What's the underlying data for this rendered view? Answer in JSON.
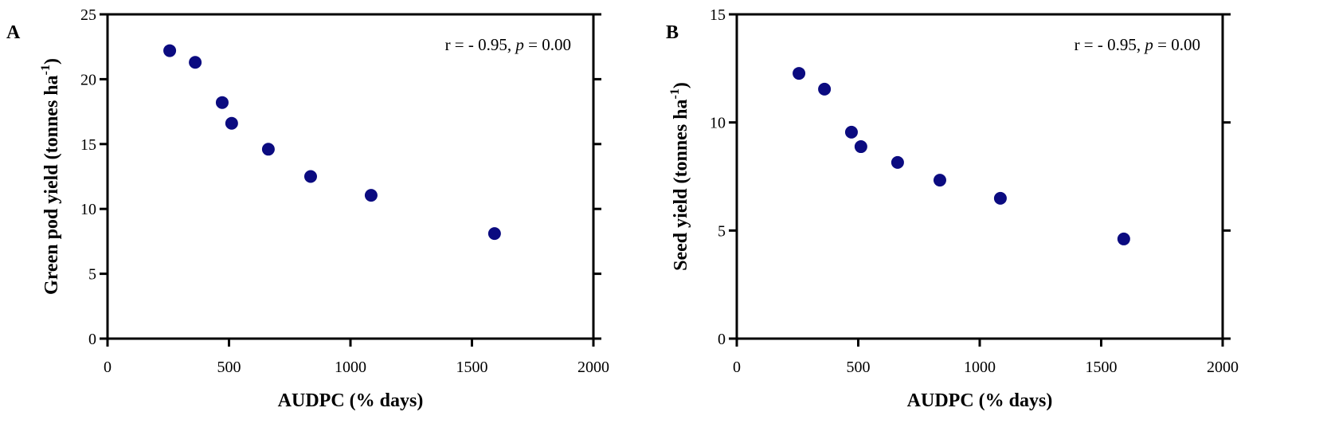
{
  "chart_data": [
    {
      "type": "scatter",
      "panel_label": "A",
      "annotation": {
        "text": "r = - 0.95, ",
        "italic": "p",
        "suffix": " = 0.00"
      },
      "x_label": "AUDPC (% days)",
      "y_label": {
        "text": "Green pod yield (tonnes ha",
        "superscript": "-1",
        "suffix": ")"
      },
      "x": [
        256,
        361,
        472,
        511,
        662,
        836,
        1085,
        1593
      ],
      "series": [
        {
          "color": "#0b0b80",
          "values": [
            22.2,
            21.3,
            18.2,
            16.6,
            14.6,
            12.5,
            11.05,
            8.1
          ]
        }
      ],
      "xlim": [
        0,
        2000
      ],
      "xticks": [
        0,
        500,
        1000,
        1500,
        2000
      ],
      "ylim": [
        0,
        25
      ],
      "yticks": [
        0,
        5,
        10,
        15,
        20,
        25
      ]
    },
    {
      "type": "scatter",
      "panel_label": "B",
      "annotation": {
        "text": "r = - 0.95, ",
        "italic": "p",
        "suffix": " = 0.00"
      },
      "x_label": "AUDPC (% days)",
      "y_label": {
        "text": "Seed yield (tonnes ha",
        "superscript": "-1",
        "suffix": ")"
      },
      "x": [
        256,
        361,
        472,
        511,
        662,
        836,
        1085,
        1593
      ],
      "series": [
        {
          "color": "#0b0b80",
          "values": [
            12.27,
            11.54,
            9.55,
            8.88,
            8.15,
            7.33,
            6.49,
            4.61
          ]
        }
      ],
      "xlim": [
        0,
        2000
      ],
      "xticks": [
        0,
        500,
        1000,
        1500,
        2000
      ],
      "ylim": [
        0,
        15
      ],
      "yticks": [
        0,
        5,
        10,
        15
      ]
    }
  ]
}
